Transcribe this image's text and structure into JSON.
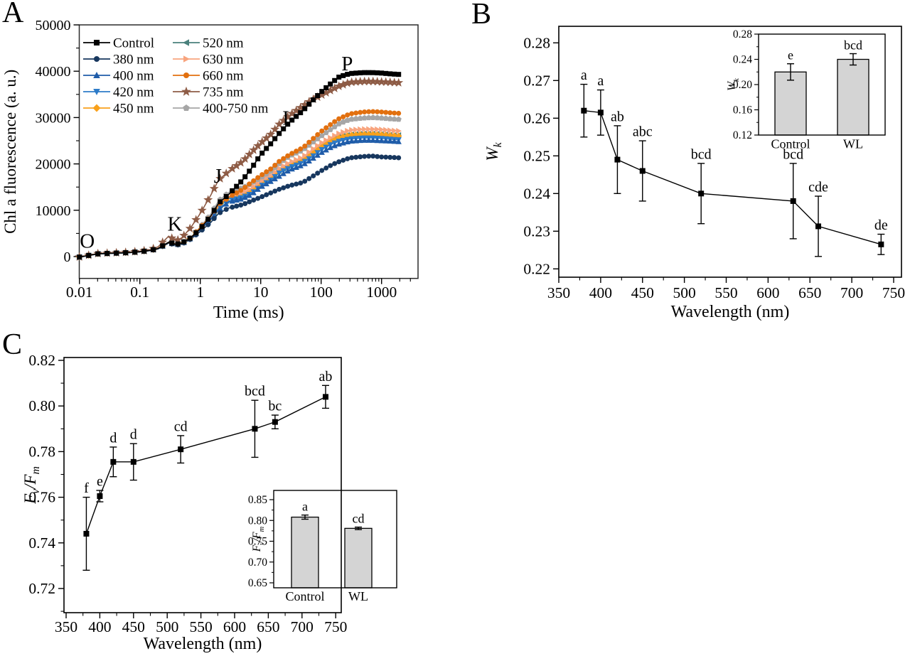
{
  "figure": {
    "background": "#ffffff",
    "panels": [
      {
        "id": "A",
        "label": "A"
      },
      {
        "id": "B",
        "label": "B"
      },
      {
        "id": "C",
        "label": "C"
      }
    ]
  },
  "chart_data": [
    {
      "panel": "A",
      "type": "line",
      "x_scale": "log",
      "xlabel": "Time (ms)",
      "ylabel": "Chl a fluorescence (a. u.)",
      "xtick_labels": [
        "0.01",
        "0.1",
        "1",
        "10",
        "100",
        "1000"
      ],
      "xticks": [
        0.01,
        0.1,
        1,
        10,
        100,
        1000
      ],
      "yticks": [
        0,
        10000,
        20000,
        30000,
        40000,
        50000
      ],
      "xlim": [
        0.007,
        4000
      ],
      "ylim": [
        -4700,
        49700
      ],
      "legend_position": "top-left",
      "x": [
        0.01,
        0.02,
        0.03,
        0.05,
        0.07,
        0.1,
        0.15,
        0.2,
        0.3,
        0.4,
        0.5,
        0.7,
        1,
        1.5,
        2,
        3,
        5,
        7,
        10,
        15,
        20,
        30,
        50,
        70,
        100,
        150,
        200,
        300,
        500,
        700,
        1000,
        1500,
        2000
      ],
      "series": [
        {
          "name": "Control",
          "color": "#000000",
          "marker": "square",
          "values": [
            -100,
            600,
            700,
            800,
            900,
            1050,
            1350,
            1750,
            3100,
            2650,
            2950,
            4100,
            6000,
            8800,
            11500,
            13500,
            16500,
            19000,
            22000,
            24500,
            26500,
            29000,
            31500,
            33500,
            35500,
            37500,
            38800,
            39500,
            39700,
            39700,
            39600,
            39400,
            39300
          ]
        },
        {
          "name": "380 nm",
          "color": "#17375E",
          "marker": "circle",
          "values": [
            -150,
            550,
            650,
            750,
            850,
            1000,
            1300,
            1650,
            2900,
            2450,
            2700,
            3800,
            5400,
            7400,
            9300,
            10500,
            11200,
            12000,
            12800,
            13800,
            14500,
            15300,
            16000,
            17200,
            18500,
            19800,
            20500,
            21300,
            21600,
            21700,
            21500,
            21400,
            21300
          ]
        },
        {
          "name": "400 nm",
          "color": "#1F5CA9",
          "marker": "triangle-up",
          "values": [
            -120,
            580,
            680,
            780,
            880,
            1020,
            1320,
            1700,
            3000,
            2550,
            2800,
            3950,
            5800,
            8000,
            10100,
            11800,
            12500,
            13400,
            15000,
            16300,
            17300,
            18700,
            19800,
            21000,
            22400,
            23700,
            24300,
            24900,
            25100,
            25100,
            25000,
            24900,
            24800
          ]
        },
        {
          "name": "420 nm",
          "color": "#2D7BC8",
          "marker": "triangle-down",
          "values": [
            -120,
            580,
            680,
            780,
            880,
            1030,
            1330,
            1700,
            3000,
            2550,
            2850,
            4000,
            5900,
            8200,
            10300,
            12000,
            12800,
            13600,
            15200,
            16600,
            18000,
            19200,
            20300,
            21500,
            23000,
            24300,
            24900,
            25400,
            25600,
            25600,
            25500,
            25300,
            25200
          ]
        },
        {
          "name": "450 nm",
          "color": "#F9A11B",
          "marker": "diamond",
          "values": [
            -100,
            600,
            700,
            800,
            900,
            1050,
            1350,
            1750,
            3050,
            2600,
            2900,
            4050,
            6100,
            8500,
            10800,
            12800,
            13500,
            14300,
            15800,
            17200,
            18500,
            19800,
            21000,
            22300,
            23800,
            25000,
            25700,
            26200,
            26400,
            26400,
            26300,
            26100,
            26000
          ]
        },
        {
          "name": "520 nm",
          "color": "#4A817C",
          "marker": "triangle-left",
          "values": [
            -100,
            590,
            690,
            790,
            890,
            1040,
            1340,
            1720,
            3000,
            2580,
            2880,
            4020,
            6000,
            8400,
            10700,
            12500,
            13300,
            14200,
            15600,
            17000,
            18400,
            19700,
            21000,
            22300,
            23800,
            25100,
            25900,
            26400,
            26600,
            26600,
            26500,
            26300,
            26200
          ]
        },
        {
          "name": "630 nm",
          "color": "#F8A47E",
          "marker": "triangle-right",
          "values": [
            -100,
            600,
            700,
            800,
            900,
            1050,
            1350,
            1750,
            3050,
            2600,
            2900,
            4050,
            6100,
            8600,
            11000,
            13000,
            13800,
            14800,
            16200,
            17600,
            19000,
            20300,
            21500,
            23000,
            24500,
            25800,
            26600,
            27300,
            27500,
            27500,
            27400,
            27200,
            27100
          ]
        },
        {
          "name": "660 nm",
          "color": "#E2700F",
          "marker": "circle",
          "values": [
            -90,
            610,
            710,
            810,
            910,
            1060,
            1360,
            1760,
            3100,
            2650,
            2950,
            4100,
            6300,
            8800,
            11200,
            12800,
            14500,
            16000,
            17500,
            19000,
            20500,
            22000,
            23500,
            25200,
            27000,
            28700,
            29800,
            30800,
            31200,
            31300,
            31200,
            31000,
            30900
          ]
        },
        {
          "name": "735 nm",
          "color": "#8E5C46",
          "marker": "star",
          "values": [
            -80,
            650,
            760,
            870,
            980,
            1150,
            1500,
            2100,
            4400,
            3400,
            4100,
            6300,
            9300,
            13300,
            16500,
            18500,
            20500,
            22500,
            24500,
            26500,
            28500,
            30500,
            32500,
            33800,
            34800,
            36000,
            36800,
            37600,
            37800,
            37800,
            37700,
            37600,
            37500
          ]
        },
        {
          "name": "400-750 nm",
          "color": "#A6A6A6",
          "marker": "pentagon",
          "values": [
            -110,
            600,
            700,
            800,
            900,
            1050,
            1360,
            1760,
            3100,
            2650,
            2950,
            4100,
            6400,
            9200,
            12000,
            13900,
            14800,
            15800,
            17000,
            18500,
            20000,
            21700,
            23000,
            24500,
            26000,
            27600,
            28700,
            29600,
            29900,
            30000,
            29900,
            29700,
            29600
          ]
        }
      ],
      "draw_order": [
        "520 nm",
        "450 nm",
        "630 nm",
        "420 nm",
        "400 nm",
        "380 nm",
        "400-750 nm",
        "660 nm",
        "735 nm",
        "Control"
      ],
      "annotations": [
        {
          "text": "O",
          "t": 0.0135,
          "f": 3300
        },
        {
          "text": "K",
          "t": 0.38,
          "f": 7000
        },
        {
          "text": "J",
          "t": 1.95,
          "f": 17300
        },
        {
          "text": "I",
          "t": 26,
          "f": 29800
        },
        {
          "text": "P",
          "t": 270,
          "f": 41600
        }
      ]
    },
    {
      "panel": "B",
      "type": "scatter-line-errorbar",
      "xlabel": "Wavelength (nm)",
      "ylabel": "W_k",
      "xticks": [
        350,
        400,
        450,
        500,
        550,
        600,
        650,
        700,
        750
      ],
      "yticks": [
        0.22,
        0.23,
        0.24,
        0.25,
        0.26,
        0.27,
        0.28
      ],
      "xlim": [
        350,
        759
      ],
      "ylim": [
        0.2175,
        0.2845
      ],
      "marker_color": "#000000",
      "points": [
        {
          "x": 380,
          "y": 0.262,
          "err": 0.007,
          "label": "a"
        },
        {
          "x": 400,
          "y": 0.2615,
          "err": 0.006,
          "label": "a"
        },
        {
          "x": 420,
          "y": 0.249,
          "err": 0.009,
          "label": "ab"
        },
        {
          "x": 450,
          "y": 0.246,
          "err": 0.008,
          "label": "abc"
        },
        {
          "x": 520,
          "y": 0.24,
          "err": 0.008,
          "label": "bcd"
        },
        {
          "x": 630,
          "y": 0.238,
          "err": 0.01,
          "label": "bcd"
        },
        {
          "x": 660,
          "y": 0.2313,
          "err": 0.008,
          "label": "cde"
        },
        {
          "x": 735,
          "y": 0.2265,
          "err": 0.0027,
          "label": "de"
        }
      ],
      "inset": {
        "type": "bar",
        "ylabel": "W_k",
        "yticks": [
          0.12,
          0.16,
          0.2,
          0.24,
          0.28
        ],
        "ylim": [
          0.12,
          0.28
        ],
        "categories": [
          "Control",
          "WL"
        ],
        "values": [
          0.22,
          0.24
        ],
        "errors": [
          0.013,
          0.009
        ],
        "letters": [
          "e",
          "bcd"
        ],
        "bar_color": "#D4D4D4"
      }
    },
    {
      "panel": "C",
      "type": "scatter-line-errorbar",
      "xlabel": "Wavelength (nm)",
      "ylabel": "F_v/F_m",
      "xticks": [
        350,
        400,
        450,
        500,
        550,
        600,
        650,
        700,
        750
      ],
      "yticks": [
        0.72,
        0.74,
        0.76,
        0.78,
        0.8,
        0.82
      ],
      "xlim": [
        347,
        758
      ],
      "ylim": [
        0.71,
        0.821
      ],
      "marker_color": "#000000",
      "points": [
        {
          "x": 380,
          "y": 0.744,
          "err": 0.016,
          "label": "f"
        },
        {
          "x": 400,
          "y": 0.7605,
          "err": 0.0025,
          "label": "e"
        },
        {
          "x": 420,
          "y": 0.7755,
          "err": 0.0065,
          "label": "d"
        },
        {
          "x": 450,
          "y": 0.7755,
          "err": 0.008,
          "label": "d"
        },
        {
          "x": 520,
          "y": 0.781,
          "err": 0.006,
          "label": "cd"
        },
        {
          "x": 630,
          "y": 0.79,
          "err": 0.0125,
          "label": "bcd"
        },
        {
          "x": 660,
          "y": 0.793,
          "err": 0.003,
          "label": "bc"
        },
        {
          "x": 735,
          "y": 0.804,
          "err": 0.005,
          "label": "ab"
        }
      ],
      "inset": {
        "type": "bar",
        "ylabel": "F_v/F_m",
        "yticks": [
          0.65,
          0.7,
          0.75,
          0.8,
          0.85
        ],
        "ylim": [
          0.638,
          0.872
        ],
        "categories": [
          "Control",
          "WL"
        ],
        "values": [
          0.808,
          0.781
        ],
        "errors": [
          0.005,
          0.003
        ],
        "letters": [
          "a",
          "cd"
        ],
        "bar_color": "#D4D4D4"
      }
    }
  ]
}
